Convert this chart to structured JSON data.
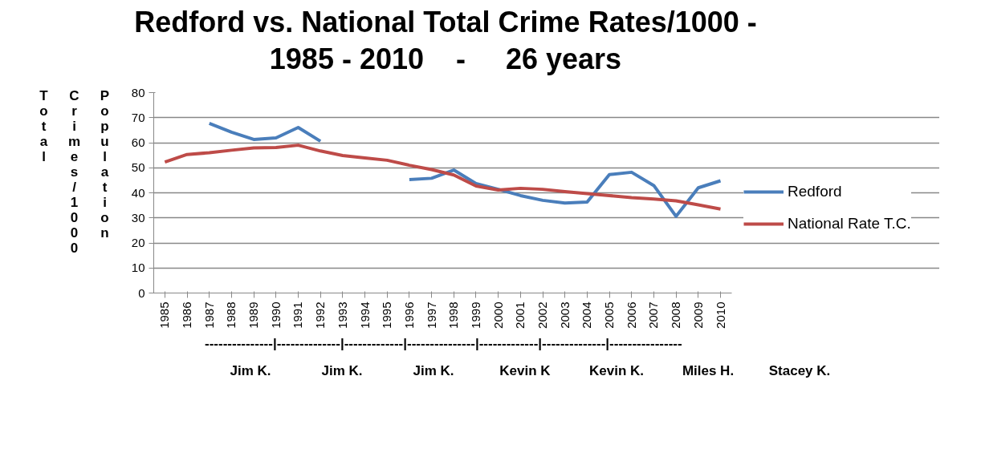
{
  "chart_data": {
    "type": "line",
    "title": "Redford vs. National Total Crime Rates/1000 -\n1985 - 2010    -     26 years",
    "ylabel": "Total Crimes/1000 Population",
    "categories": [
      "1985",
      "1986",
      "1987",
      "1988",
      "1989",
      "1990",
      "1991",
      "1992",
      "1993",
      "1994",
      "1995",
      "1996",
      "1997",
      "1998",
      "1999",
      "2000",
      "2001",
      "2002",
      "2003",
      "2004",
      "2005",
      "2006",
      "2007",
      "2008",
      "2009",
      "2010"
    ],
    "series": [
      {
        "name": "Redford",
        "color": "#4a7ebb",
        "values": [
          null,
          null,
          67.7,
          64.2,
          61.3,
          61.9,
          66.1,
          60.6,
          null,
          null,
          null,
          45.3,
          45.8,
          49.1,
          43.7,
          41.4,
          38.9,
          37.0,
          35.9,
          36.3,
          47.3,
          48.2,
          42.9,
          30.6,
          42.0,
          44.8
        ]
      },
      {
        "name": "National Rate T.C.",
        "color": "#be4b48",
        "values": [
          52.3,
          55.3,
          56.0,
          57.0,
          57.9,
          58.1,
          59.0,
          56.7,
          54.9,
          53.9,
          53.0,
          51.0,
          49.3,
          47.1,
          42.7,
          41.1,
          41.8,
          41.4,
          40.5,
          39.7,
          38.9,
          38.1,
          37.5,
          36.8,
          35.2,
          33.5
        ]
      }
    ],
    "ylim": [
      0,
      80
    ],
    "yticks": [
      0,
      10,
      20,
      30,
      40,
      50,
      60,
      70,
      80
    ],
    "grid": "y",
    "legend": "right",
    "marker": "none",
    "line_style": "solid",
    "annotations": [
      "---------------|--------------|-------------|---------------|-------------|--------------|----------------",
      "Jim K.",
      "Jim K.",
      "Jim K.",
      "Kevin K",
      "Kevin K.",
      "Miles H.",
      "Stacey K."
    ]
  }
}
